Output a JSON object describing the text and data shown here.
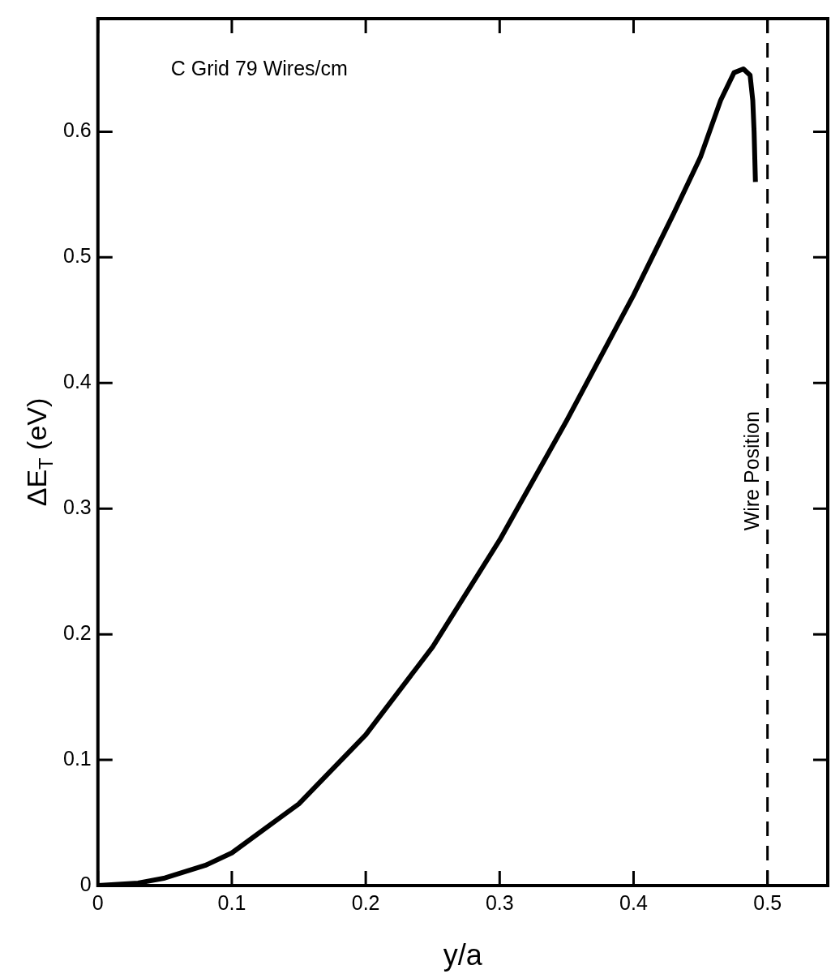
{
  "chart_data": {
    "type": "line",
    "xlabel": "y/a",
    "ylabel": "ΔE$_{T}$ (eV)",
    "annotations": [
      "C Grid 79 Wires/cm"
    ],
    "x": [
      0,
      0.03,
      0.05,
      0.08,
      0.1,
      0.15,
      0.2,
      0.25,
      0.3,
      0.35,
      0.4,
      0.43,
      0.45,
      0.465,
      0.475,
      0.482,
      0.487,
      0.489,
      0.49,
      0.491
    ],
    "series": [
      {
        "color": "#000000",
        "values": [
          0,
          0.002,
          0.006,
          0.016,
          0.026,
          0.065,
          0.12,
          0.19,
          0.275,
          0.37,
          0.47,
          0.535,
          0.58,
          0.625,
          0.647,
          0.65,
          0.645,
          0.625,
          0.6,
          0.56
        ]
      }
    ],
    "xlim": [
      0,
      0.545
    ],
    "xticks": [
      0,
      0.1,
      0.2,
      0.3,
      0.4,
      0.5
    ],
    "ylim": [
      0,
      0.69
    ],
    "yticks": [
      0,
      0.1,
      0.2,
      0.3,
      0.4,
      0.5,
      0.6
    ],
    "ref_lines": [
      {
        "axis": "x",
        "value": 0.5,
        "label": "Wire Position",
        "line_style": "dashed",
        "color": "#000000"
      }
    ],
    "grid": false,
    "legend": false,
    "marker": "none",
    "line_style": "solid"
  }
}
